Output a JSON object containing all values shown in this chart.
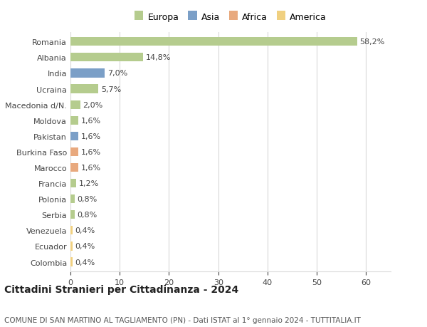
{
  "countries": [
    "Romania",
    "Albania",
    "India",
    "Ucraina",
    "Macedonia d/N.",
    "Moldova",
    "Pakistan",
    "Burkina Faso",
    "Marocco",
    "Francia",
    "Polonia",
    "Serbia",
    "Venezuela",
    "Ecuador",
    "Colombia"
  ],
  "values": [
    58.2,
    14.8,
    7.0,
    5.7,
    2.0,
    1.6,
    1.6,
    1.6,
    1.6,
    1.2,
    0.8,
    0.8,
    0.4,
    0.4,
    0.4
  ],
  "labels": [
    "58,2%",
    "14,8%",
    "7,0%",
    "5,7%",
    "2,0%",
    "1,6%",
    "1,6%",
    "1,6%",
    "1,6%",
    "1,2%",
    "0,8%",
    "0,8%",
    "0,4%",
    "0,4%",
    "0,4%"
  ],
  "continents": [
    "Europa",
    "Europa",
    "Asia",
    "Europa",
    "Europa",
    "Europa",
    "Asia",
    "Africa",
    "Africa",
    "Europa",
    "Europa",
    "Europa",
    "America",
    "America",
    "America"
  ],
  "continent_colors": {
    "Europa": "#b5cc8e",
    "Asia": "#7b9fc7",
    "Africa": "#e8a97e",
    "America": "#f0d080"
  },
  "legend_order": [
    "Europa",
    "Asia",
    "Africa",
    "America"
  ],
  "title": "Cittadini Stranieri per Cittadinanza - 2024",
  "subtitle": "COMUNE DI SAN MARTINO AL TAGLIAMENTO (PN) - Dati ISTAT al 1° gennaio 2024 - TUTTITALIA.IT",
  "xlim": [
    0,
    65
  ],
  "xticks": [
    0,
    10,
    20,
    30,
    40,
    50,
    60
  ],
  "background_color": "#ffffff",
  "grid_color": "#d8d8d8",
  "bar_height": 0.55,
  "title_fontsize": 10,
  "subtitle_fontsize": 7.5,
  "tick_fontsize": 8,
  "label_fontsize": 8
}
